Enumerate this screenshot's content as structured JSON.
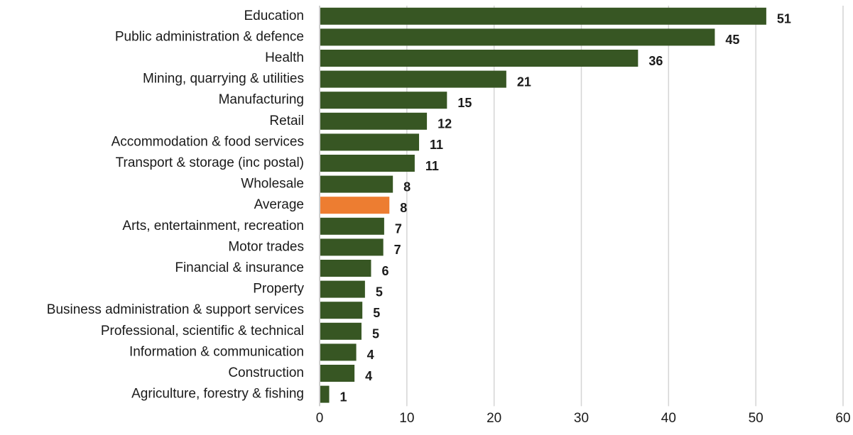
{
  "chart_data": {
    "type": "bar",
    "orientation": "horizontal",
    "categories": [
      "Education",
      "Public administration & defence",
      "Health",
      "Mining, quarrying & utilities",
      "Manufacturing",
      "Retail",
      "Accommodation & food services",
      "Transport & storage (inc postal)",
      "Wholesale",
      "Average",
      "Arts, entertainment, recreation",
      "Motor trades",
      "Financial & insurance",
      "Property",
      "Business administration & support services",
      "Professional, scientific & technical",
      "Information & communication",
      "Construction",
      "Agriculture, forestry & fishing"
    ],
    "values": [
      51.2,
      45.3,
      36.5,
      21.4,
      14.6,
      12.3,
      11.4,
      10.9,
      8.4,
      8.0,
      7.4,
      7.3,
      5.9,
      5.2,
      4.9,
      4.8,
      4.2,
      4.0,
      1.1
    ],
    "value_labels": [
      "51",
      "45",
      "36",
      "21",
      "15",
      "12",
      "11",
      "11",
      "8",
      "8",
      "7",
      "7",
      "6",
      "5",
      "5",
      "5",
      "4",
      "4",
      "1"
    ],
    "highlight_category": "Average",
    "xlim": [
      0,
      60
    ],
    "xticks": [
      "0",
      "10",
      "20",
      "30",
      "40",
      "50",
      "60"
    ],
    "grid": true,
    "title": "",
    "xlabel": "",
    "ylabel": "",
    "colors": {
      "bar": "#375623",
      "highlight": "#ED7D31",
      "grid": "#D4D4D4",
      "text": "#1A1A1A"
    }
  }
}
